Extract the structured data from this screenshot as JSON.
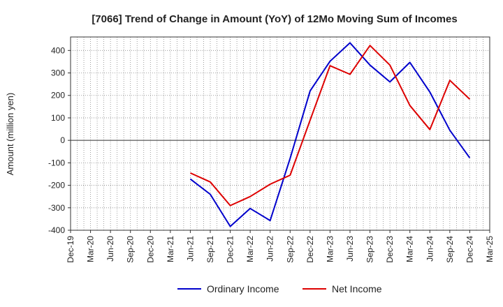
{
  "chart_data": {
    "type": "line",
    "title": "[7066]  Trend of Change in Amount (YoY) of 12Mo Moving Sum of Incomes",
    "ylabel": "Amount (million yen)",
    "xlabel": "",
    "ylim": [
      -400,
      460
    ],
    "yticks": [
      -400,
      -300,
      -200,
      -100,
      0,
      100,
      200,
      300,
      400
    ],
    "categories": [
      "Dec-19",
      "Mar-20",
      "Jun-20",
      "Sep-20",
      "Dec-20",
      "Mar-21",
      "Jun-21",
      "Sep-21",
      "Dec-21",
      "Mar-22",
      "Jun-22",
      "Sep-22",
      "Dec-22",
      "Mar-23",
      "Jun-23",
      "Sep-23",
      "Dec-23",
      "Mar-24",
      "Jun-24",
      "Sep-24",
      "Dec-24",
      "Mar-25"
    ],
    "grid": true,
    "legend_position": "bottom",
    "series": [
      {
        "name": "Ordinary Income",
        "color": "#0000cc",
        "values": [
          null,
          null,
          null,
          null,
          null,
          null,
          -172,
          -240,
          -383,
          -303,
          -357,
          -80,
          220,
          352,
          434,
          335,
          260,
          347,
          215,
          45,
          -78,
          null
        ]
      },
      {
        "name": "Net Income",
        "color": "#dd0000",
        "values": [
          null,
          null,
          null,
          null,
          null,
          null,
          -145,
          -185,
          -290,
          -250,
          -195,
          -155,
          90,
          332,
          294,
          422,
          335,
          155,
          48,
          267,
          183,
          null
        ]
      }
    ]
  }
}
